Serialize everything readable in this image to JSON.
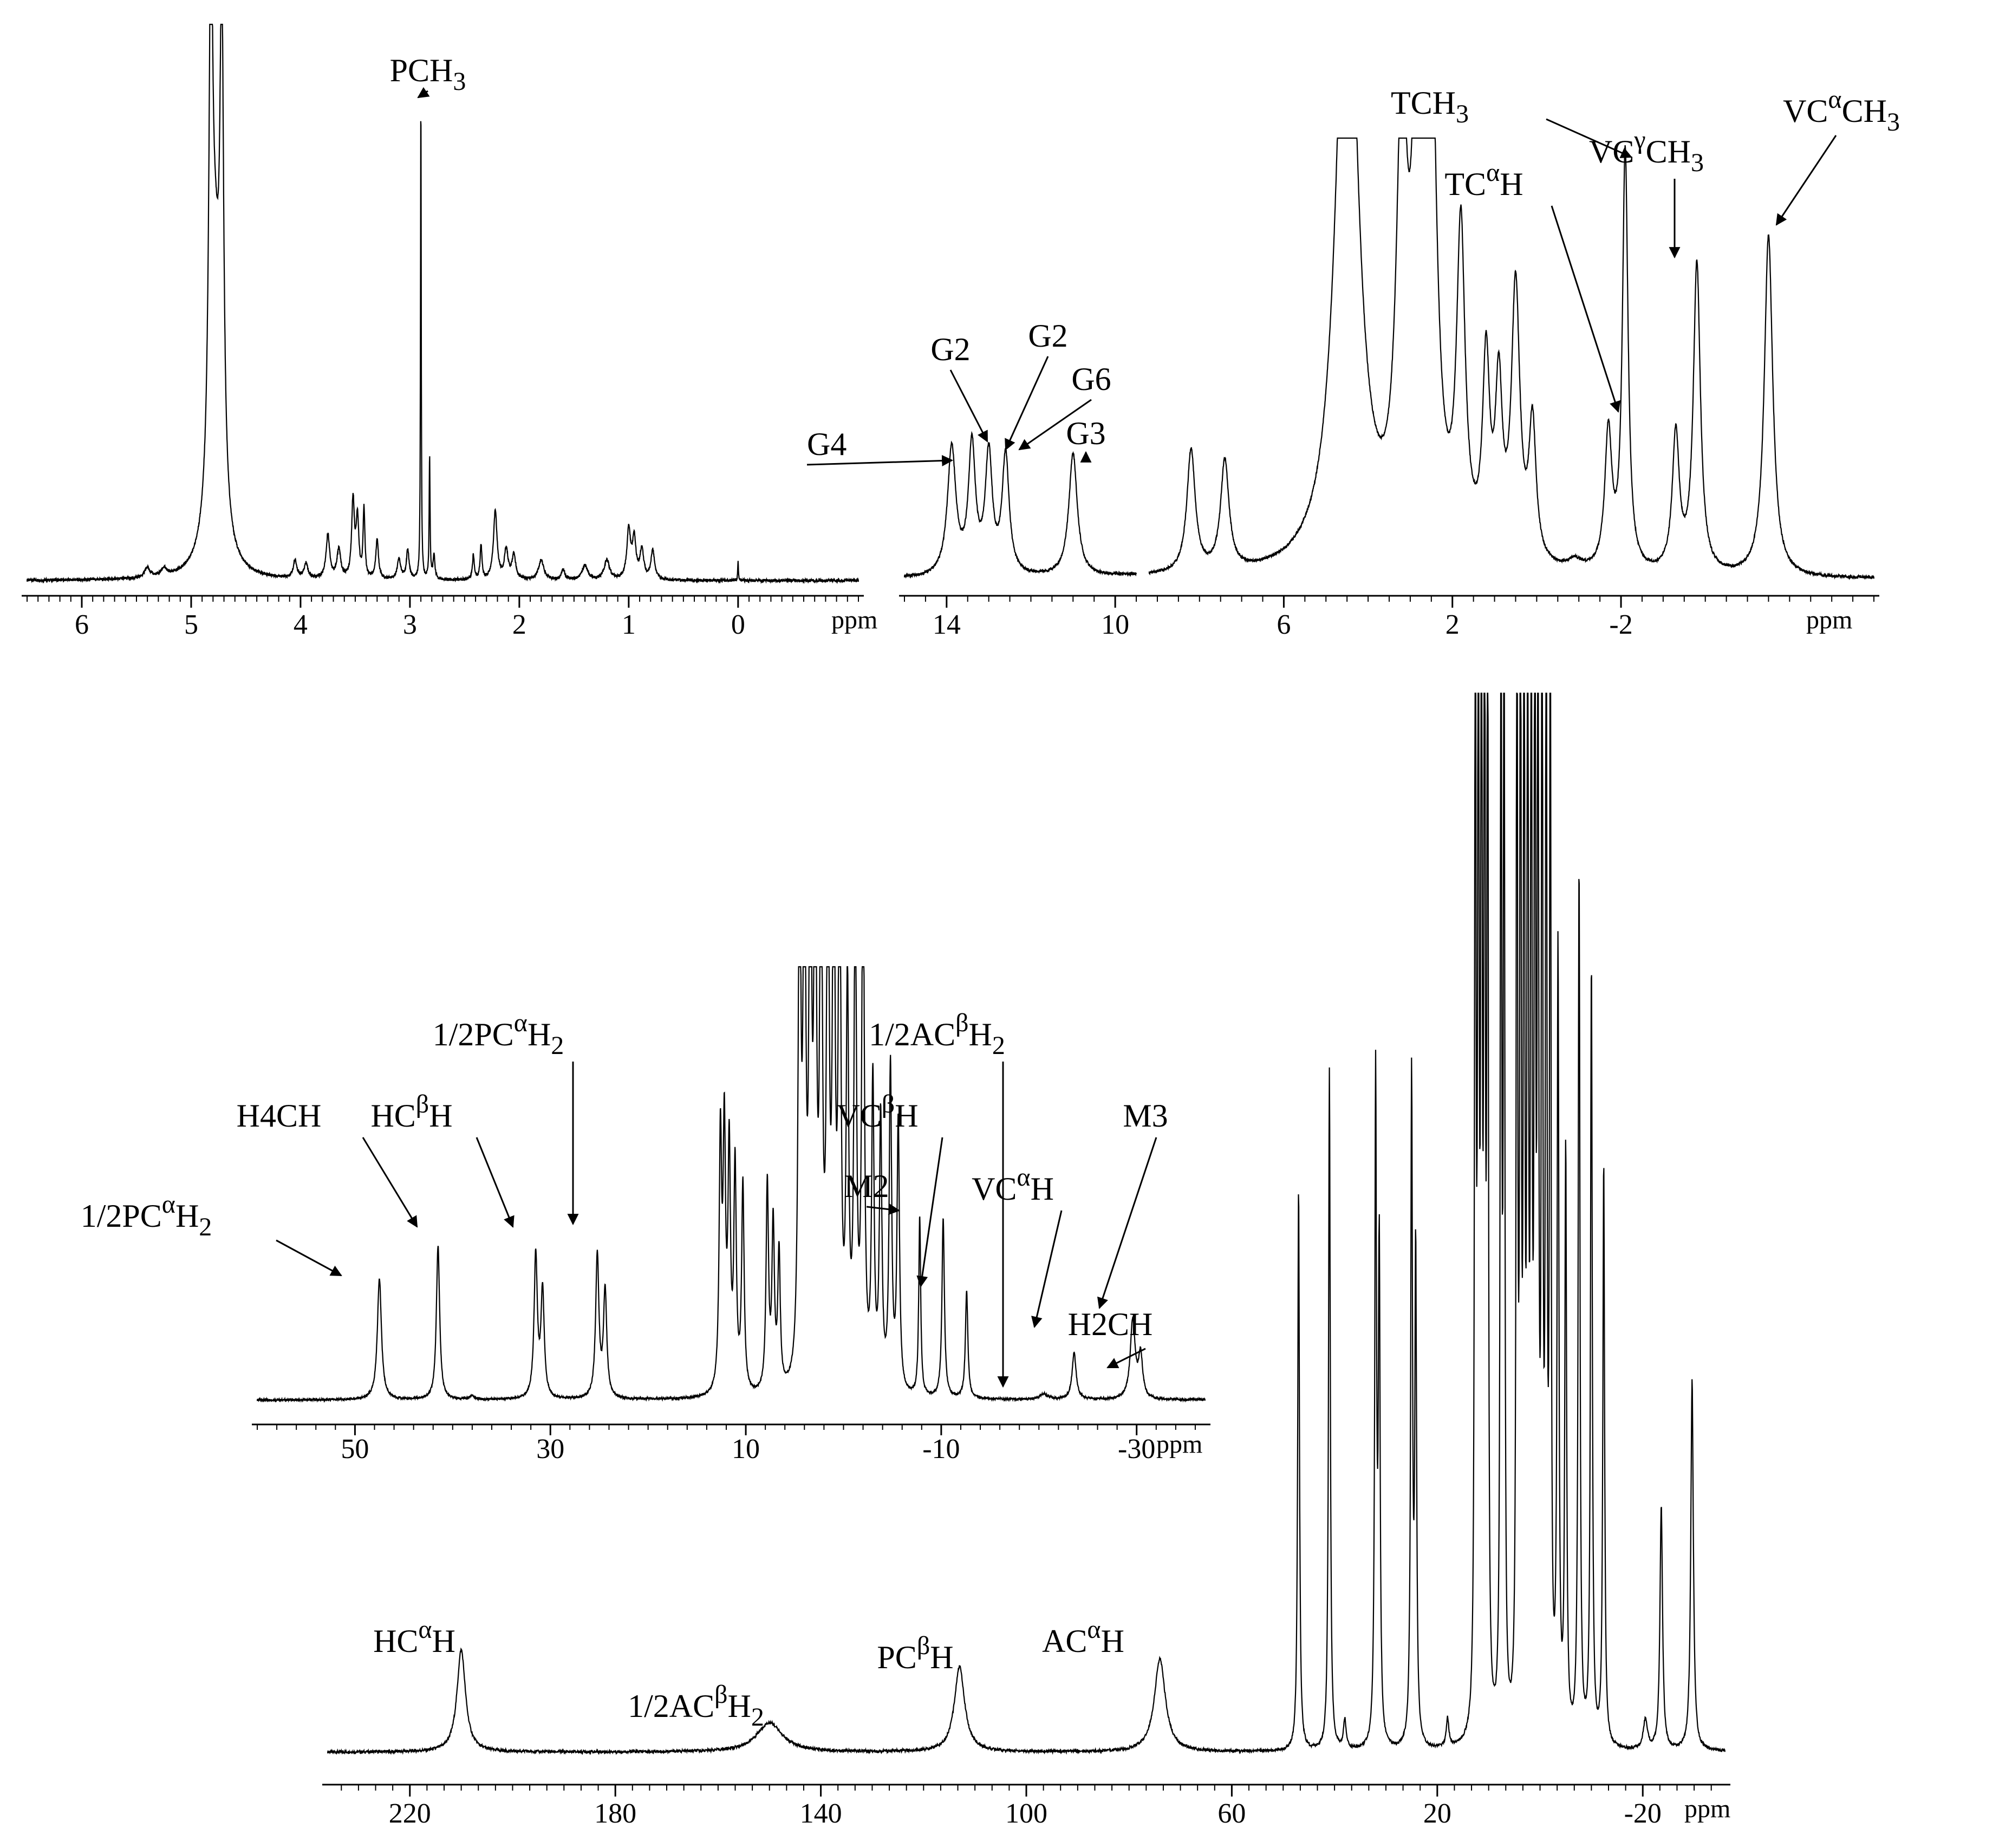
{
  "chart_data": [
    {
      "id": "a",
      "type": "line",
      "x_unit": "ppm",
      "xlim": [
        6.5,
        -1.1
      ],
      "x_ticks": [
        "6",
        "5",
        "4",
        "3",
        "2",
        "1",
        "0"
      ],
      "x_tick_values": [
        6,
        5,
        4,
        3,
        2,
        1,
        0
      ],
      "peaks": [
        {
          "x": 4.82,
          "h": 0.98,
          "w": 0.02
        },
        {
          "x": 4.72,
          "h": 0.96,
          "w": 0.02
        },
        {
          "x": 4.78,
          "h": 0.55,
          "w": 0.06
        },
        {
          "x": 5.25,
          "h": 0.015,
          "w": 0.03
        },
        {
          "x": 5.4,
          "h": 0.02,
          "w": 0.03
        },
        {
          "x": 4.05,
          "h": 0.035,
          "w": 0.02
        },
        {
          "x": 3.95,
          "h": 0.03,
          "w": 0.02
        },
        {
          "x": 3.75,
          "h": 0.09,
          "w": 0.02
        },
        {
          "x": 3.65,
          "h": 0.06,
          "w": 0.02
        },
        {
          "x": 3.52,
          "h": 0.16,
          "w": 0.015
        },
        {
          "x": 3.48,
          "h": 0.12,
          "w": 0.015
        },
        {
          "x": 3.42,
          "h": 0.14,
          "w": 0.01
        },
        {
          "x": 3.3,
          "h": 0.08,
          "w": 0.015
        },
        {
          "x": 3.1,
          "h": 0.04,
          "w": 0.02
        },
        {
          "x": 3.02,
          "h": 0.06,
          "w": 0.015
        },
        {
          "x": 2.9,
          "h": 0.98,
          "w": 0.004
        },
        {
          "x": 2.82,
          "h": 0.25,
          "w": 0.005
        },
        {
          "x": 2.78,
          "h": 0.05,
          "w": 0.01
        },
        {
          "x": 2.42,
          "h": 0.05,
          "w": 0.01
        },
        {
          "x": 2.35,
          "h": 0.07,
          "w": 0.01
        },
        {
          "x": 2.22,
          "h": 0.14,
          "w": 0.02
        },
        {
          "x": 2.12,
          "h": 0.06,
          "w": 0.02
        },
        {
          "x": 2.05,
          "h": 0.05,
          "w": 0.02
        },
        {
          "x": 1.8,
          "h": 0.04,
          "w": 0.03
        },
        {
          "x": 1.6,
          "h": 0.02,
          "w": 0.02
        },
        {
          "x": 1.4,
          "h": 0.03,
          "w": 0.03
        },
        {
          "x": 1.2,
          "h": 0.04,
          "w": 0.03
        },
        {
          "x": 1.0,
          "h": 0.1,
          "w": 0.02
        },
        {
          "x": 0.95,
          "h": 0.08,
          "w": 0.02
        },
        {
          "x": 0.88,
          "h": 0.06,
          "w": 0.02
        },
        {
          "x": 0.78,
          "h": 0.06,
          "w": 0.02
        },
        {
          "x": 0.0,
          "h": 0.04,
          "w": 0.004
        }
      ],
      "annotations": [
        {
          "id": "pch3",
          "label": "PCH",
          "sub": "3",
          "sup": "",
          "tail": "",
          "x": 2.9,
          "y": 0.98
        }
      ]
    },
    {
      "id": "b",
      "type": "line",
      "x_unit": "ppm",
      "xlim": [
        15,
        -8
      ],
      "x_ticks": [
        "14",
        "10",
        "6",
        "2",
        "-2"
      ],
      "x_tick_values": [
        14,
        10,
        6,
        2,
        -2
      ],
      "gaps": [
        [
          9.5,
          9.2
        ]
      ],
      "peaks": [
        {
          "x": 13.88,
          "h": 0.28,
          "w": 0.12
        },
        {
          "x": 13.4,
          "h": 0.28,
          "w": 0.1
        },
        {
          "x": 13.0,
          "h": 0.26,
          "w": 0.1
        },
        {
          "x": 12.6,
          "h": 0.26,
          "w": 0.1
        },
        {
          "x": 11.0,
          "h": 0.27,
          "w": 0.12
        },
        {
          "x": 8.2,
          "h": 0.27,
          "w": 0.12
        },
        {
          "x": 7.4,
          "h": 0.24,
          "w": 0.12
        },
        {
          "x": 4.5,
          "h": 1.5,
          "w": 0.3
        },
        {
          "x": 3.2,
          "h": 0.9,
          "w": 0.15
        },
        {
          "x": 2.8,
          "h": 1.2,
          "w": 0.15
        },
        {
          "x": 2.5,
          "h": 1.0,
          "w": 0.15
        },
        {
          "x": 1.8,
          "h": 0.7,
          "w": 0.12
        },
        {
          "x": 1.2,
          "h": 0.42,
          "w": 0.1
        },
        {
          "x": 0.9,
          "h": 0.36,
          "w": 0.1
        },
        {
          "x": 0.5,
          "h": 0.6,
          "w": 0.12
        },
        {
          "x": 0.1,
          "h": 0.3,
          "w": 0.1
        },
        {
          "x": -0.9,
          "h": 0.02,
          "w": 0.2
        },
        {
          "x": -1.7,
          "h": 0.3,
          "w": 0.1
        },
        {
          "x": -2.1,
          "h": 0.92,
          "w": 0.08
        },
        {
          "x": -3.3,
          "h": 0.3,
          "w": 0.1
        },
        {
          "x": -3.8,
          "h": 0.68,
          "w": 0.1
        },
        {
          "x": -5.5,
          "h": 0.75,
          "w": 0.12
        }
      ],
      "annotations": [
        {
          "id": "g4",
          "label": "G4",
          "sub": "",
          "sup": "",
          "tail": "",
          "x": 13.88,
          "y": 0.28
        },
        {
          "id": "g2a",
          "label": "G2",
          "sub": "",
          "sup": "",
          "tail": "",
          "x": 13.4,
          "y": 0.28
        },
        {
          "id": "g2b",
          "label": "G2",
          "sub": "",
          "sup": "",
          "tail": "",
          "x": 13.0,
          "y": 0.26
        },
        {
          "id": "g6",
          "label": "G6",
          "sub": "",
          "sup": "",
          "tail": "",
          "x": 12.6,
          "y": 0.26
        },
        {
          "id": "g3",
          "label": "G3",
          "sub": "",
          "sup": "",
          "tail": "",
          "x": 11.0,
          "y": 0.27
        },
        {
          "id": "tch3",
          "label": "TCH",
          "sub": "3",
          "sup": "",
          "tail": "",
          "x": -2.1,
          "y": 0.92
        },
        {
          "id": "tcah",
          "label": "TC",
          "sub": "",
          "sup": "α",
          "tail": "H",
          "x": -1.7,
          "y": 0.3
        },
        {
          "id": "vcgch3",
          "label": "VC",
          "sub": "3",
          "sup": "γ",
          "tail": "CH",
          "x": -3.8,
          "y": 0.68
        },
        {
          "id": "vcach3",
          "label": "VC",
          "sub": "3",
          "sup": "α",
          "tail": "CH",
          "x": -5.5,
          "y": 0.75
        }
      ]
    },
    {
      "id": "c",
      "type": "line",
      "x_unit": "ppm",
      "xlim": [
        60,
        -37
      ],
      "x_ticks": [
        "50",
        "30",
        "10",
        "-10",
        "-30"
      ],
      "x_tick_values": [
        50,
        30,
        10,
        -10,
        -30
      ],
      "peaks": [
        {
          "x": 47.5,
          "h": 0.34,
          "w": 0.25
        },
        {
          "x": 41.5,
          "h": 0.43,
          "w": 0.2
        },
        {
          "x": 38.0,
          "h": 0.01,
          "w": 0.3
        },
        {
          "x": 31.5,
          "h": 0.4,
          "w": 0.2
        },
        {
          "x": 30.8,
          "h": 0.3,
          "w": 0.2
        },
        {
          "x": 25.2,
          "h": 0.4,
          "w": 0.2
        },
        {
          "x": 24.4,
          "h": 0.3,
          "w": 0.2
        },
        {
          "x": 12.6,
          "h": 0.7,
          "w": 0.15
        },
        {
          "x": 12.2,
          "h": 0.7,
          "w": 0.15
        },
        {
          "x": 11.7,
          "h": 0.66,
          "w": 0.15
        },
        {
          "x": 11.1,
          "h": 0.62,
          "w": 0.15
        },
        {
          "x": 10.3,
          "h": 0.58,
          "w": 0.15
        },
        {
          "x": 7.8,
          "h": 0.58,
          "w": 0.15
        },
        {
          "x": 7.2,
          "h": 0.46,
          "w": 0.15
        },
        {
          "x": 6.6,
          "h": 0.38,
          "w": 0.15
        },
        {
          "x": 4.5,
          "h": 1.6,
          "w": 0.15
        },
        {
          "x": 4.0,
          "h": 1.6,
          "w": 0.15
        },
        {
          "x": 3.4,
          "h": 1.6,
          "w": 0.15
        },
        {
          "x": 2.9,
          "h": 1.6,
          "w": 0.15
        },
        {
          "x": 2.3,
          "h": 1.6,
          "w": 0.15
        },
        {
          "x": 1.6,
          "h": 1.6,
          "w": 0.15
        },
        {
          "x": 1.0,
          "h": 1.6,
          "w": 0.15
        },
        {
          "x": 0.4,
          "h": 1.6,
          "w": 0.15
        },
        {
          "x": -0.4,
          "h": 1.1,
          "w": 0.15
        },
        {
          "x": -1.2,
          "h": 1.4,
          "w": 0.15
        },
        {
          "x": -2.0,
          "h": 1.6,
          "w": 0.15
        },
        {
          "x": -3.0,
          "h": 0.85,
          "w": 0.15
        },
        {
          "x": -3.8,
          "h": 0.75,
          "w": 0.15
        },
        {
          "x": -4.8,
          "h": 0.9,
          "w": 0.15
        },
        {
          "x": -5.6,
          "h": 0.75,
          "w": 0.15
        },
        {
          "x": -7.8,
          "h": 0.5,
          "w": 0.12
        },
        {
          "x": -10.2,
          "h": 0.5,
          "w": 0.15
        },
        {
          "x": -12.6,
          "h": 0.3,
          "w": 0.15
        },
        {
          "x": -20.5,
          "h": 0.015,
          "w": 0.5
        },
        {
          "x": -23.6,
          "h": 0.13,
          "w": 0.25
        },
        {
          "x": -29.6,
          "h": 0.22,
          "w": 0.3
        },
        {
          "x": -30.4,
          "h": 0.12,
          "w": 0.25
        }
      ],
      "annotations": [
        {
          "id": "pcah2a",
          "label": "1/2PC",
          "sub": "2",
          "sup": "α",
          "tail": "H",
          "x": 47.5,
          "y": 0.34
        },
        {
          "id": "h4ch",
          "label": "H4CH",
          "sub": "",
          "sup": "",
          "tail": "",
          "x": 41.5,
          "y": 0.43
        },
        {
          "id": "hcbh",
          "label": "HC",
          "sub": "",
          "sup": "β",
          "tail": "H",
          "x": 31.5,
          "y": 0.4
        },
        {
          "id": "pcah2b",
          "label": "1/2PC",
          "sub": "2",
          "sup": "α",
          "tail": "H",
          "x": 25.2,
          "y": 0.4
        },
        {
          "id": "m2",
          "label": "M2",
          "sub": "",
          "sup": "",
          "tail": "",
          "x": -7.8,
          "y": 0.5
        },
        {
          "id": "vcbh",
          "label": "VC",
          "sub": "",
          "sup": "β",
          "tail": "H",
          "x": -10.2,
          "y": 0.5
        },
        {
          "id": "acbh2",
          "label": "1/2AC",
          "sub": "2",
          "sup": "β",
          "tail": "H",
          "x": -20.5,
          "y": 0.015
        },
        {
          "id": "vcah",
          "label": "VC",
          "sub": "",
          "sup": "α",
          "tail": "H",
          "x": -23.6,
          "y": 0.13
        },
        {
          "id": "m3",
          "label": "M3",
          "sub": "",
          "sup": "",
          "tail": "",
          "x": -29.6,
          "y": 0.22
        },
        {
          "id": "h2ch",
          "label": "H2CH",
          "sub": "",
          "sup": "",
          "tail": "",
          "x": -30.8,
          "y": 0.1
        }
      ]
    },
    {
      "id": "d",
      "type": "line",
      "x_unit": "ppm",
      "xlim": [
        236,
        -36
      ],
      "x_ticks": [
        "220",
        "180",
        "140",
        "100",
        "60",
        "20",
        "-20"
      ],
      "x_tick_values": [
        220,
        180,
        140,
        100,
        60,
        20,
        -20
      ],
      "peaks": [
        {
          "x": 210.0,
          "h": 0.21,
          "w": 1.0
        },
        {
          "x": 150.0,
          "h": 0.06,
          "w": 3.0
        },
        {
          "x": 113.0,
          "h": 0.175,
          "w": 1.2
        },
        {
          "x": 74.0,
          "h": 0.19,
          "w": 1.3
        },
        {
          "x": 47.0,
          "h": 1.16,
          "w": 0.2
        },
        {
          "x": 41.0,
          "h": 1.4,
          "w": 0.2
        },
        {
          "x": 38.0,
          "h": 0.06,
          "w": 0.3
        },
        {
          "x": 32.0,
          "h": 1.36,
          "w": 0.2
        },
        {
          "x": 31.3,
          "h": 1.0,
          "w": 0.2
        },
        {
          "x": 25.0,
          "h": 1.36,
          "w": 0.2
        },
        {
          "x": 24.2,
          "h": 1.0,
          "w": 0.2
        },
        {
          "x": 18.0,
          "h": 0.06,
          "w": 0.3
        },
        {
          "x": 12.6,
          "h": 2.6,
          "w": 0.15
        },
        {
          "x": 12.0,
          "h": 2.6,
          "w": 0.15
        },
        {
          "x": 11.4,
          "h": 2.6,
          "w": 0.15
        },
        {
          "x": 10.8,
          "h": 2.6,
          "w": 0.15
        },
        {
          "x": 10.2,
          "h": 2.6,
          "w": 0.15
        },
        {
          "x": 7.6,
          "h": 2.6,
          "w": 0.15
        },
        {
          "x": 7.0,
          "h": 2.6,
          "w": 0.15
        },
        {
          "x": 4.5,
          "h": 2.6,
          "w": 0.15
        },
        {
          "x": 3.8,
          "h": 2.6,
          "w": 0.15
        },
        {
          "x": 3.1,
          "h": 2.6,
          "w": 0.15
        },
        {
          "x": 2.4,
          "h": 2.6,
          "w": 0.15
        },
        {
          "x": 1.7,
          "h": 2.6,
          "w": 0.15
        },
        {
          "x": 1.0,
          "h": 2.6,
          "w": 0.15
        },
        {
          "x": 0.4,
          "h": 2.6,
          "w": 0.15
        },
        {
          "x": -0.4,
          "h": 2.6,
          "w": 0.15
        },
        {
          "x": -1.2,
          "h": 2.6,
          "w": 0.15
        },
        {
          "x": -2.0,
          "h": 2.6,
          "w": 0.15
        },
        {
          "x": -3.5,
          "h": 1.6,
          "w": 0.2
        },
        {
          "x": -5.0,
          "h": 1.2,
          "w": 0.2
        },
        {
          "x": -7.6,
          "h": 1.8,
          "w": 0.2
        },
        {
          "x": -10.0,
          "h": 1.6,
          "w": 0.2
        },
        {
          "x": -12.4,
          "h": 1.2,
          "w": 0.2
        },
        {
          "x": -20.5,
          "h": 0.06,
          "w": 0.5
        },
        {
          "x": -23.6,
          "h": 0.5,
          "w": 0.3
        },
        {
          "x": -29.6,
          "h": 0.76,
          "w": 0.3
        }
      ],
      "annotations": [
        {
          "id": "hcah",
          "label": "HC",
          "sub": "",
          "sup": "α",
          "tail": "H",
          "x": 210.0,
          "y": 0.21
        },
        {
          "id": "acbh2d",
          "label": "1/2AC",
          "sub": "2",
          "sup": "β",
          "tail": "H",
          "x": 150.0,
          "y": 0.06
        },
        {
          "id": "pcbh",
          "label": "PC",
          "sub": "",
          "sup": "β",
          "tail": "H",
          "x": 113.0,
          "y": 0.175
        },
        {
          "id": "acah",
          "label": "AC",
          "sub": "",
          "sup": "α",
          "tail": "H",
          "x": 74.0,
          "y": 0.19
        }
      ]
    }
  ]
}
